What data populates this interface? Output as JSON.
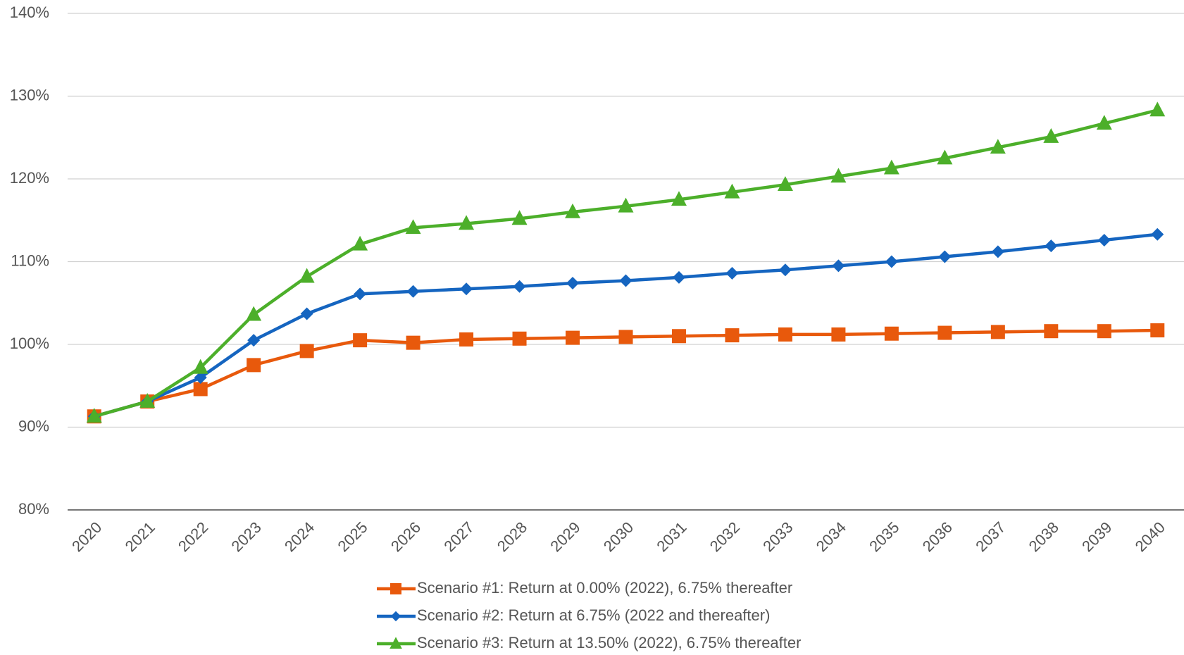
{
  "chart_data": {
    "type": "line",
    "categories": [
      "2020",
      "2021",
      "2022",
      "2023",
      "2024",
      "2025",
      "2026",
      "2027",
      "2028",
      "2029",
      "2030",
      "2031",
      "2032",
      "2033",
      "2034",
      "2035",
      "2036",
      "2037",
      "2038",
      "2039",
      "2040"
    ],
    "series": [
      {
        "name": "Scenario #1: Return at 0.00% (2022), 6.75% thereafter",
        "color": "#e8590c",
        "marker": "square",
        "values": [
          91.3,
          93.1,
          94.6,
          97.5,
          99.2,
          100.5,
          100.2,
          100.6,
          100.7,
          100.8,
          100.9,
          101.0,
          101.1,
          101.2,
          101.2,
          101.3,
          101.4,
          101.5,
          101.6,
          101.6,
          101.7
        ]
      },
      {
        "name": "Scenario #2: Return at 6.75% (2022 and thereafter)",
        "color": "#1565c0",
        "marker": "diamond",
        "values": [
          91.3,
          93.1,
          96.0,
          100.5,
          103.7,
          106.1,
          106.4,
          106.7,
          107.0,
          107.4,
          107.7,
          108.1,
          108.6,
          109.0,
          109.5,
          110.0,
          110.6,
          111.2,
          111.9,
          112.6,
          113.3
        ]
      },
      {
        "name": "Scenario #3: Return at 13.50% (2022), 6.75% thereafter",
        "color": "#4caf2a",
        "marker": "triangle",
        "values": [
          91.3,
          93.1,
          97.2,
          103.6,
          108.2,
          112.1,
          114.1,
          114.6,
          115.2,
          116.0,
          116.7,
          117.5,
          118.4,
          119.3,
          120.3,
          121.3,
          122.5,
          123.8,
          125.1,
          126.7,
          128.3
        ]
      }
    ],
    "ylim": [
      80,
      140
    ],
    "yticks": [
      {
        "value": 80,
        "label": "80%"
      },
      {
        "value": 90,
        "label": "90%"
      },
      {
        "value": 100,
        "label": "100%"
      },
      {
        "value": 110,
        "label": "110%"
      },
      {
        "value": 120,
        "label": "120%"
      },
      {
        "value": 130,
        "label": "130%"
      },
      {
        "value": 140,
        "label": "140%"
      }
    ],
    "grid": true,
    "legend": "bottom"
  }
}
